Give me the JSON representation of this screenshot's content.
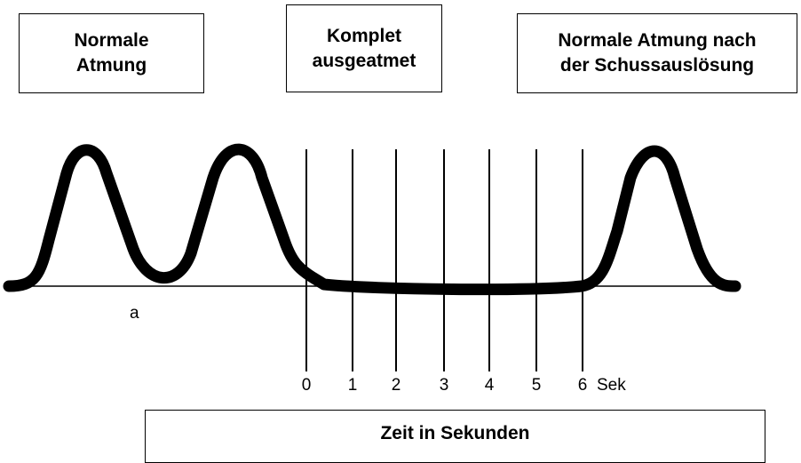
{
  "boxes": [
    {
      "lines": [
        "Normale",
        "Atmung"
      ]
    },
    {
      "lines": [
        "Komplet",
        "ausgeatmet"
      ]
    },
    {
      "lines": [
        "Normale Atmung nach",
        "der Schussauslösung"
      ]
    }
  ],
  "curve_label": "a",
  "time_labels": [
    "0",
    "1",
    "2",
    "3",
    "4",
    "5",
    "6"
  ],
  "unit_label": "Sek",
  "footer": "Zeit in Sekunden"
}
